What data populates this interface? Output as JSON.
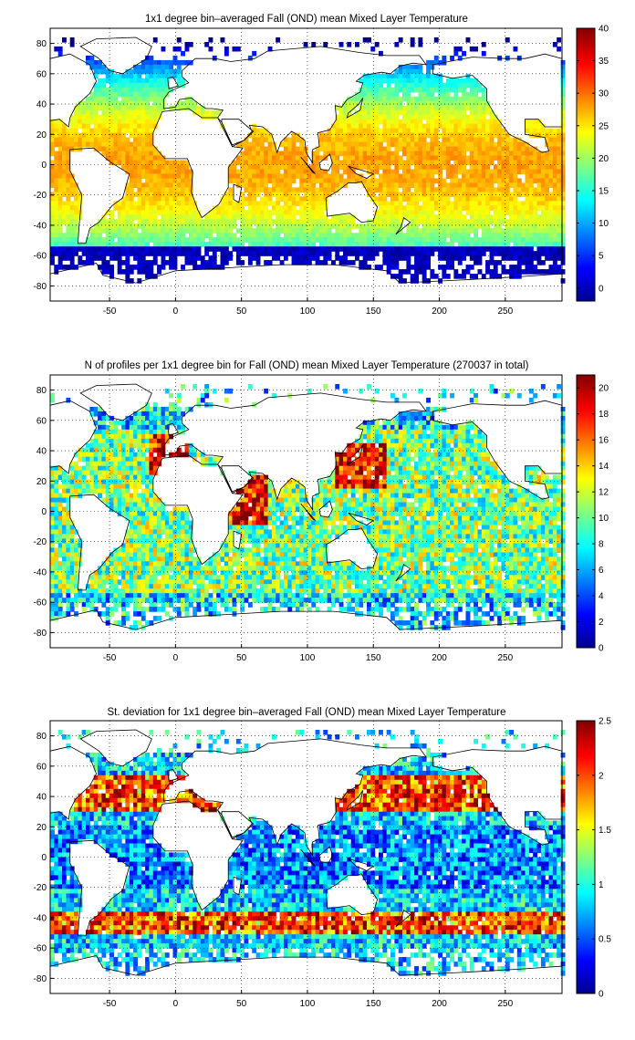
{
  "figure": {
    "panels": [
      {
        "title": "1x1 degree bin–averaged Fall (OND) mean Mixed Layer Temperature",
        "colorbar_ticks": [
          "40",
          "35",
          "30",
          "25",
          "20",
          "15",
          "10",
          "5",
          "0"
        ],
        "colorbar_range": [
          -2,
          40
        ],
        "field": "temperature"
      },
      {
        "title": "N of profiles per 1x1 degree bin for Fall (OND) mean Mixed Layer Temperature  (270037 in total)",
        "colorbar_ticks": [
          "20",
          "18",
          "16",
          "14",
          "12",
          "10",
          "8",
          "6",
          "4",
          "2",
          "0"
        ],
        "colorbar_range": [
          0,
          21
        ],
        "field": "count"
      },
      {
        "title": "St. deviation for 1x1 degree bin–averaged Fall (OND) mean Mixed Layer Temperature",
        "colorbar_ticks": [
          "2.5",
          "2",
          "1.5",
          "1",
          "0.5",
          "0"
        ],
        "colorbar_range": [
          0,
          2.5
        ],
        "field": "stdev"
      }
    ],
    "x_ticks": [
      "-50",
      "0",
      "50",
      "100",
      "150",
      "200",
      "250"
    ],
    "y_ticks": [
      "80",
      "60",
      "40",
      "20",
      "0",
      "-20",
      "-40",
      "-60",
      "-80"
    ],
    "x_range": [
      -95,
      293
    ],
    "y_range": [
      -90,
      90
    ],
    "grid": "dotted",
    "colormap": "jet"
  }
}
